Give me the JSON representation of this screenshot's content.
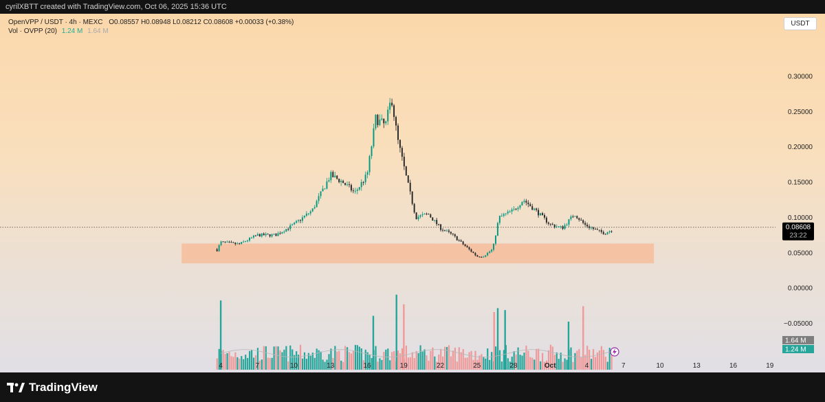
{
  "header": {
    "attribution": "cyrilXBTT created with TradingView.com, Oct 06, 2025 15:36 UTC"
  },
  "legend": {
    "symbol": "OpenVPP / USDT · 4h · MEXC",
    "ohlc": "O0.08557 H0.08948 L0.08212 C0.08608 +0.00033 (+0.38%)",
    "volume_label": "Vol · OVPP (20)",
    "volume_value": "1.24 M",
    "volume_ma": "1.64 M"
  },
  "currency_button": "USDT",
  "footer": {
    "brand": "TradingView"
  },
  "colors": {
    "up": "#089981",
    "down": "#f23645",
    "up_volume": "#26a69a",
    "down_volume": "#ef9a9a",
    "zone": "#f7b894",
    "price_tag": "#000000",
    "volume_ma_tag": "#7e7e7e",
    "volume_tag": "#26a69a"
  },
  "chart_data": {
    "type": "candlestick",
    "symbol": "OpenVPP / USDT",
    "timeframe": "4h",
    "exchange": "MEXC",
    "y_ticks": [
      "0.30000",
      "0.25000",
      "0.20000",
      "0.15000",
      "0.10000",
      "0.05000",
      "0.00000",
      "−0.05000"
    ],
    "ylim": [
      -0.1,
      0.33
    ],
    "x_ticks": [
      "4",
      "7",
      "10",
      "13",
      "16",
      "19",
      "22",
      "25",
      "28",
      "Oct",
      "4",
      "7",
      "10",
      "13",
      "16",
      "19"
    ],
    "x_tick_days": [
      0,
      3,
      6,
      9,
      12,
      15,
      18,
      21,
      24,
      27,
      30,
      33,
      36,
      39,
      42,
      45
    ],
    "last_price": "0.08608",
    "countdown": "23:22",
    "last_price_value": 0.08608,
    "support_zone": {
      "low": 0.035,
      "high": 0.063,
      "start_day": -3.2,
      "end_day": 35.5
    },
    "price_path": [
      [
        -0.4,
        0.05,
        0.03
      ],
      [
        0,
        0.065,
        0.04
      ],
      [
        1.5,
        0.062,
        0.07
      ],
      [
        3,
        0.075,
        0.08
      ],
      [
        4.5,
        0.075,
        0.07
      ],
      [
        6,
        0.09,
        0.092
      ],
      [
        7.5,
        0.11,
        0.11
      ],
      [
        9,
        0.16,
        0.175
      ],
      [
        10,
        0.15,
        0.14
      ],
      [
        11,
        0.135,
        0.13
      ],
      [
        12,
        0.16,
        0.165
      ],
      [
        12.7,
        0.24,
        0.26
      ],
      [
        13.5,
        0.23,
        0.26
      ],
      [
        14,
        0.27,
        0.29
      ],
      [
        14.5,
        0.21,
        0.19
      ],
      [
        15.3,
        0.15,
        0.16
      ],
      [
        16,
        0.1,
        0.11
      ],
      [
        17,
        0.105,
        0.1
      ],
      [
        18,
        0.085,
        0.08
      ],
      [
        19,
        0.075,
        0.07
      ],
      [
        20,
        0.06,
        0.06
      ],
      [
        21,
        0.045,
        0.042
      ],
      [
        21.5,
        0.045,
        0.05
      ],
      [
        22.3,
        0.055,
        0.055
      ],
      [
        22.8,
        0.1,
        0.105
      ],
      [
        24,
        0.11,
        0.12
      ],
      [
        24.8,
        0.125,
        0.125
      ],
      [
        25.8,
        0.11,
        0.1
      ],
      [
        27,
        0.09,
        0.085
      ],
      [
        28,
        0.085,
        0.08
      ],
      [
        29,
        0.105,
        0.11
      ],
      [
        29.8,
        0.09,
        0.085
      ],
      [
        31,
        0.08,
        0.08
      ],
      [
        31.5,
        0.078,
        0.077
      ],
      [
        32,
        0.082,
        0.086
      ]
    ],
    "volume": {
      "last_value": "1.24 M",
      "ma_value": "1.64 M",
      "spikes": [
        {
          "day": 0,
          "value": 3.6,
          "dir": "up"
        },
        {
          "day": 12.5,
          "value": 2.8,
          "dir": "up"
        },
        {
          "day": 14.4,
          "value": 3.9,
          "dir": "up"
        },
        {
          "day": 15,
          "value": 3.4,
          "dir": "down"
        },
        {
          "day": 22.7,
          "value": 3.2,
          "dir": "up"
        },
        {
          "day": 22.4,
          "value": 3.0,
          "dir": "down"
        },
        {
          "day": 23.3,
          "value": 3.1,
          "dir": "up"
        },
        {
          "day": 28.5,
          "value": 2.5,
          "dir": "up"
        },
        {
          "day": 29.7,
          "value": 3.3,
          "dir": "down"
        }
      ]
    }
  }
}
